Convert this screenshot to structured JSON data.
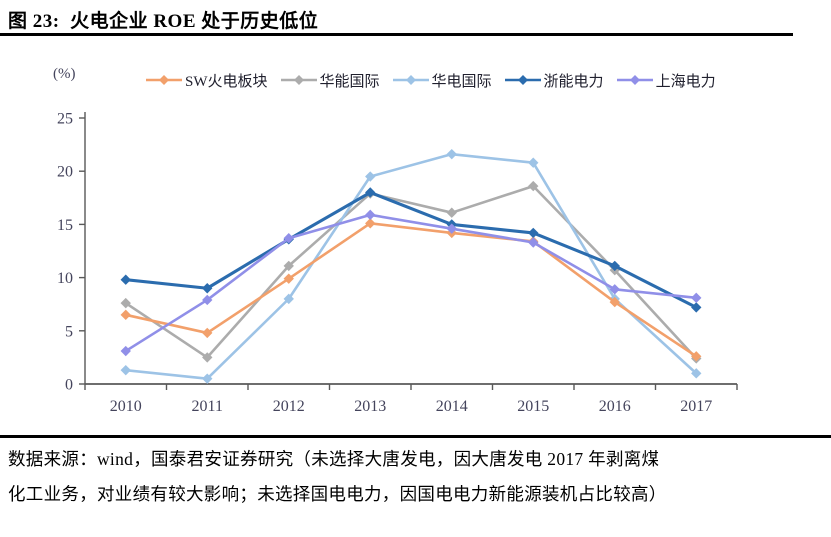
{
  "header": {
    "title": "图 23:  火电企业 ROE 处于历史低位"
  },
  "chart_data": {
    "type": "line",
    "title": "火电企业 ROE 处于历史低位",
    "ylabel": "(%)",
    "xlabel": "",
    "categories": [
      "2010",
      "2011",
      "2012",
      "2013",
      "2014",
      "2015",
      "2016",
      "2017"
    ],
    "series": [
      {
        "name": "SW火电板块",
        "color": "#F2A06B",
        "values": [
          6.5,
          4.8,
          9.9,
          15.1,
          14.2,
          13.4,
          7.7,
          2.6
        ]
      },
      {
        "name": "华能国际",
        "color": "#ACACAC",
        "values": [
          7.6,
          2.5,
          11.1,
          17.9,
          16.1,
          18.6,
          10.7,
          2.4
        ]
      },
      {
        "name": "华电国际",
        "color": "#9DC3E6",
        "values": [
          1.3,
          0.5,
          8.0,
          19.5,
          21.6,
          20.8,
          8.0,
          1.0
        ]
      },
      {
        "name": "浙能电力",
        "color": "#2B6CAE",
        "values": [
          9.8,
          9.0,
          13.6,
          18.0,
          15.0,
          14.2,
          11.1,
          7.2
        ]
      },
      {
        "name": "上海电力",
        "color": "#908FE8",
        "values": [
          3.1,
          7.9,
          13.7,
          15.9,
          14.6,
          13.3,
          8.9,
          8.1
        ]
      }
    ],
    "ylim": [
      0,
      25
    ],
    "yticks": [
      0,
      5,
      10,
      15,
      20,
      25
    ],
    "grid": false,
    "legend_position": "top",
    "marker": "diamond",
    "axis_color": "#595959",
    "tick_label_color": "#44445c"
  },
  "footer": {
    "line1": "数据来源：wind，国泰君安证券研究（未选择大唐发电，因大唐发电 2017 年剥离煤",
    "line2": "化工业务，对业绩有较大影响；未选择国电电力，因国电电力新能源装机占比较高）"
  }
}
